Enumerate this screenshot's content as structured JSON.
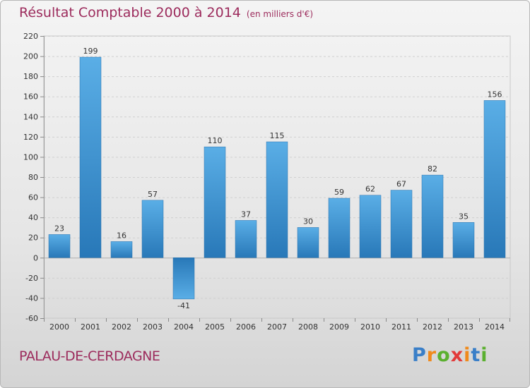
{
  "chart_data": {
    "type": "bar",
    "title": "Résultat Comptable 2000 à 2014",
    "unit_label": "(en milliers d'€)",
    "categories": [
      "2000",
      "2001",
      "2002",
      "2003",
      "2004",
      "2005",
      "2006",
      "2007",
      "2008",
      "2009",
      "2010",
      "2011",
      "2012",
      "2013",
      "2014"
    ],
    "values": [
      23,
      199,
      16,
      57,
      -41,
      110,
      37,
      115,
      30,
      59,
      62,
      67,
      82,
      35,
      156
    ],
    "ylim": [
      -60,
      220
    ],
    "yticks": [
      "220",
      "200",
      "180",
      "160",
      "140",
      "120",
      "100",
      "80",
      "60",
      "40",
      "20",
      "0",
      "-20",
      "-40",
      "-60"
    ],
    "ytick_values": [
      220,
      200,
      180,
      160,
      140,
      120,
      100,
      80,
      60,
      40,
      20,
      0,
      -20,
      -40,
      -60
    ],
    "xlabel": "",
    "ylabel": "",
    "grid": true,
    "bar_color_light": "#5aaee6",
    "bar_color_dark": "#2878b8"
  },
  "commune": "PALAU-DE-CERDAGNE",
  "logo": {
    "letters": [
      "P",
      "r",
      "o",
      "x",
      "i",
      "t",
      "i"
    ],
    "colors": [
      "#3a7fc8",
      "#f08a1c",
      "#5bb030",
      "#e23a3a",
      "#f08a1c",
      "#3a7fc8",
      "#5bb030"
    ]
  },
  "colors": {
    "title": "#9c2b5c",
    "axis_text": "#333333"
  }
}
